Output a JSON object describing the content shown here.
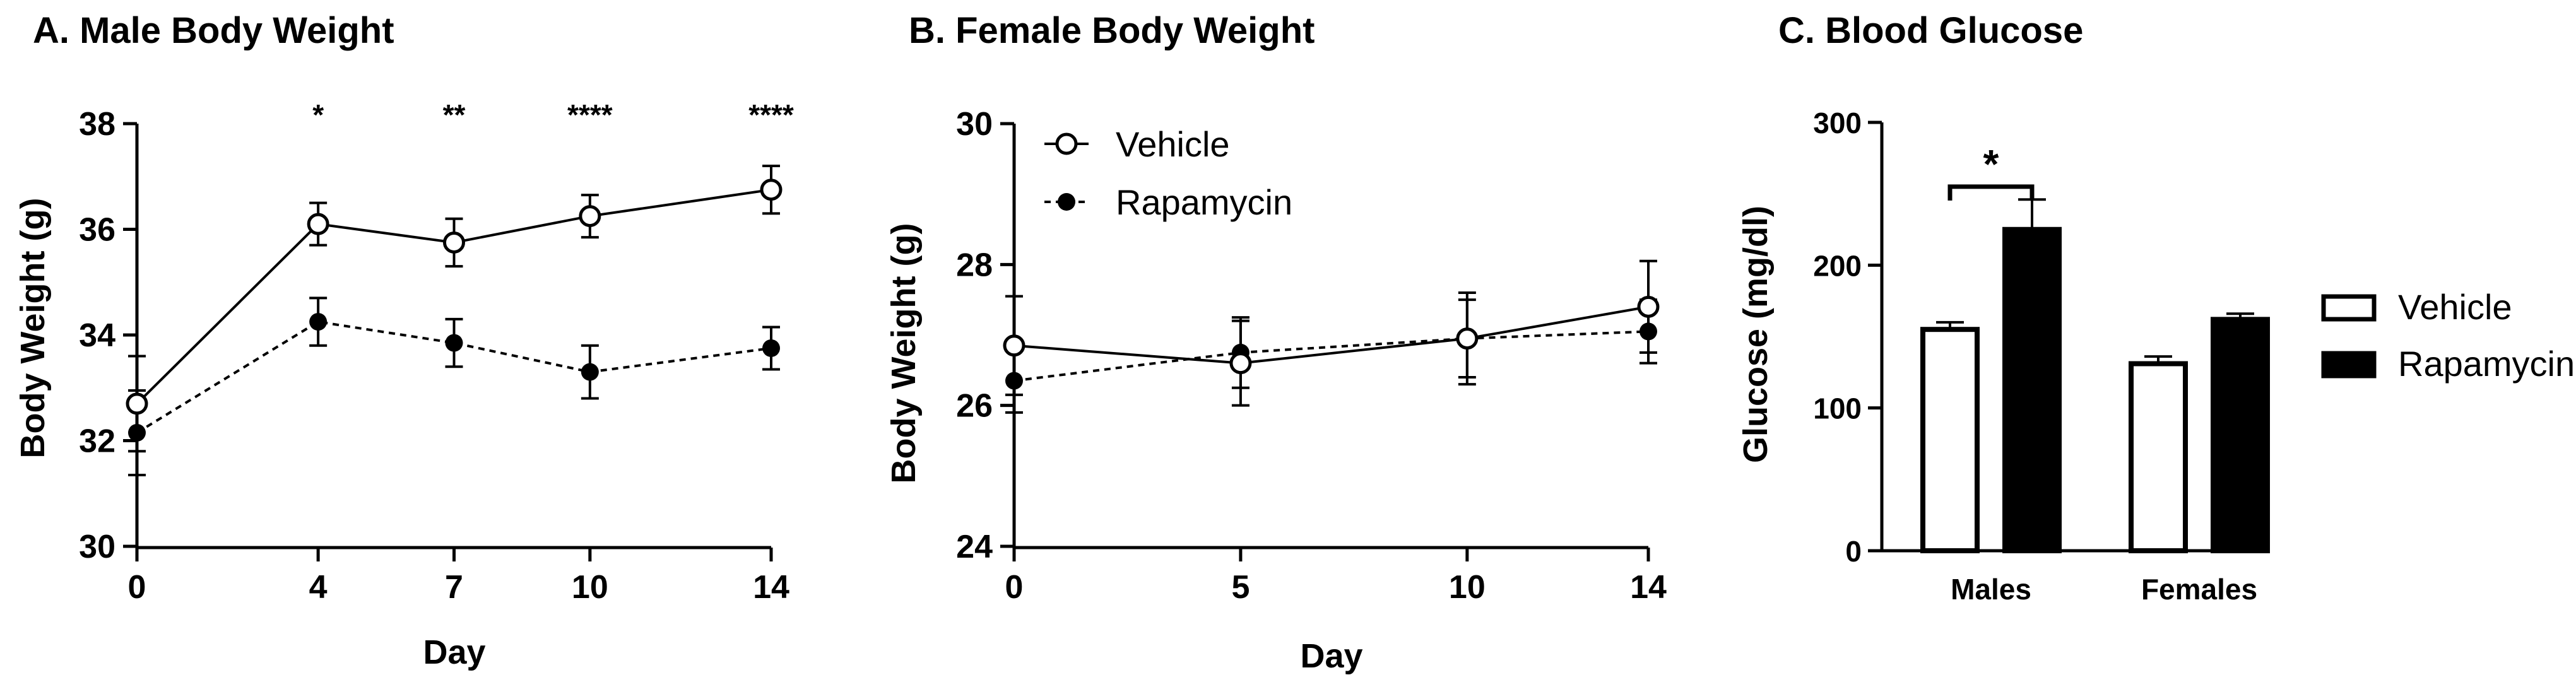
{
  "chart_data": [
    {
      "type": "line",
      "title": "A.  Male Body Weight",
      "xlabel": "Day",
      "ylabel": "Body Weight (g)",
      "xlim": [
        0,
        14
      ],
      "ylim": [
        30,
        38
      ],
      "x_ticks": [
        "0",
        "4",
        "7",
        "10",
        "14"
      ],
      "y_ticks": [
        "30",
        "32",
        "34",
        "36",
        "38"
      ],
      "x": [
        0,
        4,
        7,
        10,
        14
      ],
      "series": [
        {
          "name": "Vehicle",
          "marker": "open-circle",
          "line": "solid",
          "values": [
            32.7,
            36.1,
            35.75,
            36.25,
            36.75
          ],
          "errors": [
            0.9,
            0.4,
            0.45,
            0.4,
            0.45
          ]
        },
        {
          "name": "Rapamycin",
          "marker": "filled-circle",
          "line": "dashed",
          "values": [
            32.15,
            34.25,
            33.85,
            33.3,
            33.75
          ],
          "errors": [
            0.8,
            0.45,
            0.45,
            0.5,
            0.4
          ]
        }
      ],
      "annotations": [
        {
          "x": 4,
          "text": "*"
        },
        {
          "x": 7,
          "text": "**"
        },
        {
          "x": 10,
          "text": "****"
        },
        {
          "x": 14,
          "text": "****"
        }
      ]
    },
    {
      "type": "line",
      "title": "B. Female Body Weight",
      "xlabel": "Day",
      "ylabel": "Body Weight (g)",
      "xlim": [
        0,
        14
      ],
      "ylim": [
        24,
        30
      ],
      "x_ticks": [
        "0",
        "5",
        "10",
        "14"
      ],
      "y_ticks": [
        "24",
        "26",
        "28",
        "30"
      ],
      "x": [
        0,
        5,
        10,
        14
      ],
      "series": [
        {
          "name": "Vehicle",
          "marker": "open-circle",
          "line": "solid",
          "values": [
            26.85,
            26.6,
            26.95,
            27.4
          ],
          "errors": [
            0.7,
            0.6,
            0.65,
            0.65
          ]
        },
        {
          "name": "Rapamycin",
          "marker": "filled-circle",
          "line": "dashed",
          "values": [
            26.35,
            26.75,
            26.95,
            27.05
          ],
          "errors": [
            0.45,
            0.5,
            0.55,
            0.45
          ]
        }
      ],
      "legend": {
        "placement": "top-left",
        "entries": [
          "Vehicle",
          "Rapamycin"
        ]
      }
    },
    {
      "type": "bar",
      "title": "C. Blood Glucose",
      "xlabel": "",
      "ylabel": "Glucose (mg/dl)",
      "ylim": [
        0,
        300
      ],
      "y_ticks": [
        "0",
        "100",
        "200",
        "300"
      ],
      "categories": [
        "Males",
        "Females"
      ],
      "series": [
        {
          "name": "Vehicle",
          "fill": "white",
          "values": [
            155,
            131
          ],
          "errors": [
            5,
            5
          ]
        },
        {
          "name": "Rapamycin",
          "fill": "black",
          "values": [
            225,
            162
          ],
          "errors": [
            21,
            4
          ]
        }
      ],
      "significance": {
        "category": "Males",
        "text": "*"
      },
      "legend": {
        "placement": "right",
        "entries": [
          "Vehicle",
          "Rapamycin"
        ]
      }
    }
  ]
}
